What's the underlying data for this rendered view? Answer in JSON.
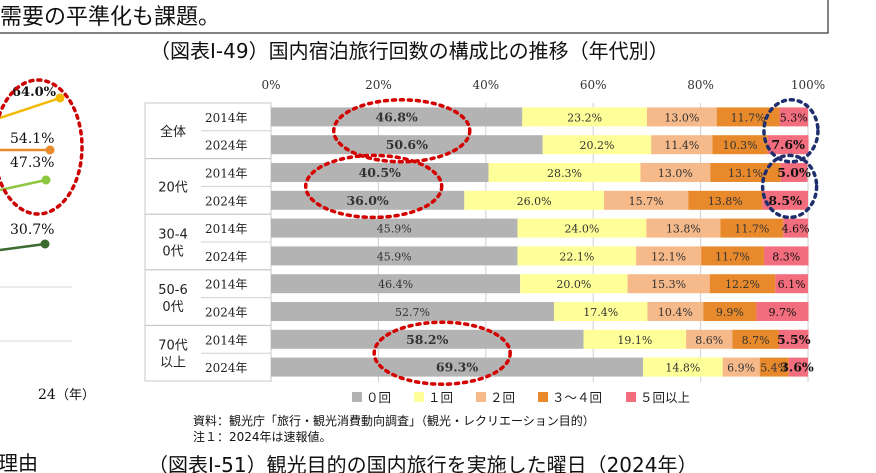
{
  "top_banner_text": "需要の平準化も課題。",
  "left_fragment": {
    "labels": [
      "64.0%",
      "54.1%",
      "47.3%",
      "30.7%"
    ],
    "colors": [
      "#f5b800",
      "#e88a2c",
      "#8dc63f",
      "#3b6b2f"
    ],
    "x_tick": "24",
    "x_unit": "（年）"
  },
  "chart_data": {
    "type": "bar",
    "stacked": true,
    "orientation": "horizontal",
    "title": "（図表Ⅰ-49）国内宿泊旅行回数の構成比の推移（年代別）",
    "x_ticks": [
      "0%",
      "20%",
      "40%",
      "60%",
      "80%",
      "100%"
    ],
    "xlim": [
      0,
      100
    ],
    "groups": [
      {
        "name": "全体",
        "rows": [
          {
            "year": "2014年",
            "values": [
              46.8,
              23.2,
              13.0,
              11.7,
              5.3
            ],
            "labels": [
              "46.8%",
              "23.2%",
              "13.0%",
              "11.7%",
              "5.3%"
            ]
          },
          {
            "year": "2024年",
            "values": [
              50.6,
              20.2,
              11.4,
              10.3,
              7.6
            ],
            "labels": [
              "50.6%",
              "20.2%",
              "11.4%",
              "10.3%",
              "7.6%"
            ]
          }
        ]
      },
      {
        "name": "20代",
        "rows": [
          {
            "year": "2014年",
            "values": [
              40.5,
              28.3,
              13.0,
              13.1,
              5.0
            ],
            "labels": [
              "40.5%",
              "28.3%",
              "13.0%",
              "13.1%",
              "5.0%"
            ]
          },
          {
            "year": "2024年",
            "values": [
              36.0,
              26.0,
              15.7,
              13.8,
              8.5
            ],
            "labels": [
              "36.0%",
              "26.0%",
              "15.7%",
              "13.8%",
              "8.5%"
            ]
          }
        ]
      },
      {
        "name": "30-40代",
        "rows": [
          {
            "year": "2014年",
            "values": [
              45.9,
              24.0,
              13.8,
              11.7,
              4.6
            ],
            "labels": [
              "45.9%",
              "24.0%",
              "13.8%",
              "11.7%",
              "4.6%"
            ]
          },
          {
            "year": "2024年",
            "values": [
              45.9,
              22.1,
              12.1,
              11.7,
              8.3
            ],
            "labels": [
              "45.9%",
              "22.1%",
              "12.1%",
              "11.7%",
              "8.3%"
            ]
          }
        ]
      },
      {
        "name": "50-60代",
        "rows": [
          {
            "year": "2014年",
            "values": [
              46.4,
              20.0,
              15.3,
              12.2,
              6.1
            ],
            "labels": [
              "46.4%",
              "20.0%",
              "15.3%",
              "12.2%",
              "6.1%"
            ]
          },
          {
            "year": "2024年",
            "values": [
              52.7,
              17.4,
              10.4,
              9.9,
              9.7
            ],
            "labels": [
              "52.7%",
              "17.4%",
              "10.4%",
              "9.9%",
              "9.7%"
            ]
          }
        ]
      },
      {
        "name": "70代以上",
        "rows": [
          {
            "year": "2014年",
            "values": [
              58.2,
              19.1,
              8.6,
              8.7,
              5.5
            ],
            "labels": [
              "58.2%",
              "19.1%",
              "8.6%",
              "8.7%",
              "5.5%"
            ]
          },
          {
            "year": "2024年",
            "values": [
              69.3,
              14.8,
              6.9,
              5.4,
              3.6
            ],
            "labels": [
              "69.3%",
              "14.8%",
              "6.9%",
              "5.4%",
              "3.6%"
            ]
          }
        ]
      }
    ],
    "series": [
      {
        "name": "０回",
        "color": "#b3b3b3"
      },
      {
        "name": "１回",
        "color": "#ffff99"
      },
      {
        "name": "２回",
        "color": "#f5b98a"
      },
      {
        "name": "３～４回",
        "color": "#e88a2c"
      },
      {
        "name": "５回以上",
        "color": "#f26d7d"
      }
    ],
    "legend_position": "bottom",
    "highlight_red": [
      "全体.2014年.0",
      "全体.2024年.0",
      "20代.2014年.0",
      "20代.2024年.0",
      "70代以上.2014年.0",
      "70代以上.2024年.0"
    ],
    "highlight_blue": [
      "全体.2014年.4",
      "全体.2024年.4",
      "20代.2014年.4",
      "20代.2024年.4"
    ]
  },
  "source_note": "資料：観光庁「旅行・観光消費動向調査」（観光・レクリエーション目的）",
  "note1": "注１：2024年は速報値。",
  "bottom_left_text": "理由",
  "next_title": "（図表Ⅰ-51）観光目的の国内旅行を実施した曜日（2024年）"
}
